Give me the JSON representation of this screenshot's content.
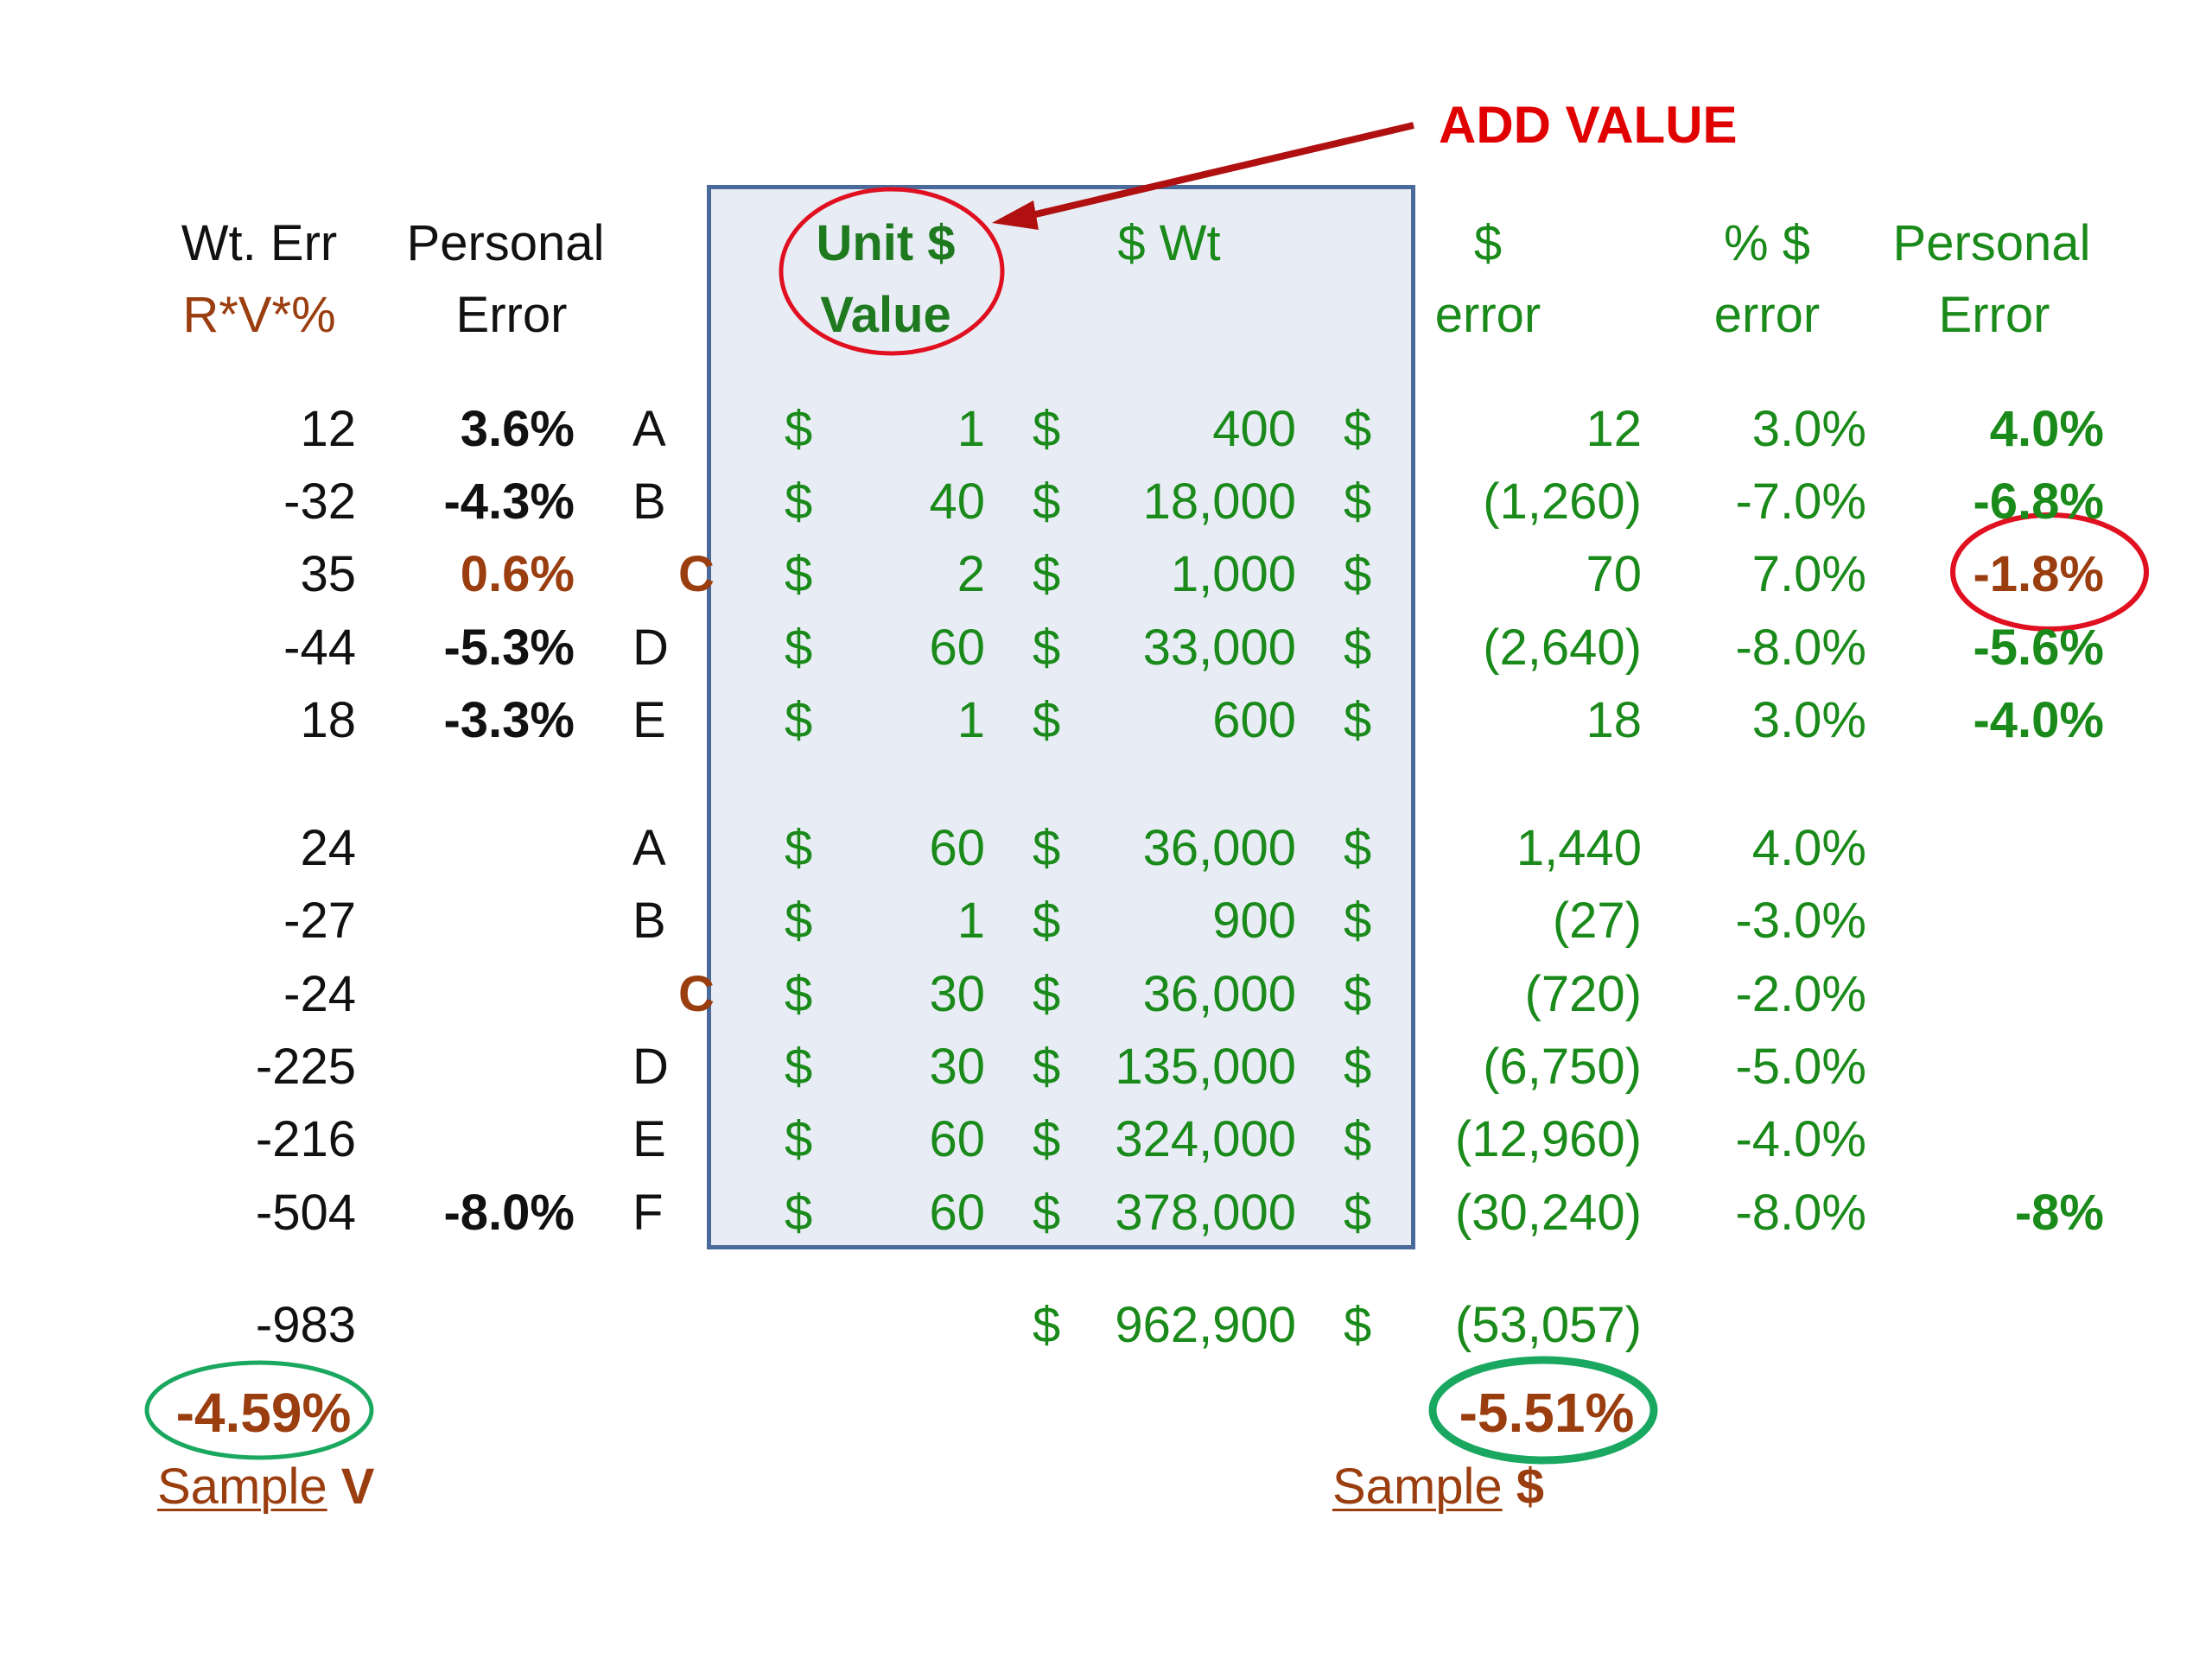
{
  "callout": "ADD VALUE",
  "headers": {
    "wt_err": [
      "Wt. Err",
      "R*V*%"
    ],
    "personal_error_left": [
      "Personal",
      "Error"
    ],
    "unit_value": [
      "Unit $",
      "Value"
    ],
    "dollar_wt": "$ Wt",
    "dollar_error": [
      "$",
      "error"
    ],
    "pct_error": [
      "%  $",
      "error"
    ],
    "personal_error_right": [
      "Personal",
      "Error"
    ]
  },
  "group1": [
    {
      "wt_err": "12",
      "pe": "3.6%",
      "label": "A",
      "unit": "1",
      "wt": "400",
      "err": "12",
      "pct": "3.0%",
      "pe2": "4.0%"
    },
    {
      "wt_err": "-32",
      "pe": "-4.3%",
      "label": "B",
      "unit": "40",
      "wt": "18,000",
      "err": "(1,260)",
      "pct": "-7.0%",
      "pe2": "-6.8%"
    },
    {
      "wt_err": "35",
      "pe": "0.6%",
      "label": "C",
      "unit": "2",
      "wt": "1,000",
      "err": "70",
      "pct": "7.0%",
      "pe2": "-1.8%"
    },
    {
      "wt_err": "-44",
      "pe": "-5.3%",
      "label": "D",
      "unit": "60",
      "wt": "33,000",
      "err": "(2,640)",
      "pct": "-8.0%",
      "pe2": "-5.6%"
    },
    {
      "wt_err": "18",
      "pe": "-3.3%",
      "label": "E",
      "unit": "1",
      "wt": "600",
      "err": "18",
      "pct": "3.0%",
      "pe2": "-4.0%"
    }
  ],
  "group2": [
    {
      "wt_err": "24",
      "pe": "",
      "label": "A",
      "unit": "60",
      "wt": "36,000",
      "err": "1,440",
      "pct": "4.0%",
      "pe2": ""
    },
    {
      "wt_err": "-27",
      "pe": "",
      "label": "B",
      "unit": "1",
      "wt": "900",
      "err": "(27)",
      "pct": "-3.0%",
      "pe2": ""
    },
    {
      "wt_err": "-24",
      "pe": "",
      "label": "C",
      "unit": "30",
      "wt": "36,000",
      "err": "(720)",
      "pct": "-2.0%",
      "pe2": ""
    },
    {
      "wt_err": "-225",
      "pe": "",
      "label": "D",
      "unit": "30",
      "wt": "135,000",
      "err": "(6,750)",
      "pct": "-5.0%",
      "pe2": ""
    },
    {
      "wt_err": "-216",
      "pe": "",
      "label": "E",
      "unit": "60",
      "wt": "324,000",
      "err": "(12,960)",
      "pct": "-4.0%",
      "pe2": ""
    },
    {
      "wt_err": "-504",
      "pe": "-8.0%",
      "label": "F",
      "unit": "60",
      "wt": "378,000",
      "err": "(30,240)",
      "pct": "-8.0%",
      "pe2": "-8%"
    }
  ],
  "dollar_sign": "$",
  "totals": {
    "wt_err": "-983",
    "wt": "962,900",
    "err": "(53,057)"
  },
  "sample_v": {
    "value": "-4.59%",
    "label": "Sample",
    "label_suffix": "V"
  },
  "sample_dollar": {
    "value": "-5.51%",
    "label": "Sample",
    "label_suffix": "$"
  },
  "colors": {
    "green": "#1a8a1a",
    "brown": "#9a3d0f",
    "red": "#e00000",
    "panel": "#e8edf5",
    "panel_border": "#4a6a9a"
  }
}
